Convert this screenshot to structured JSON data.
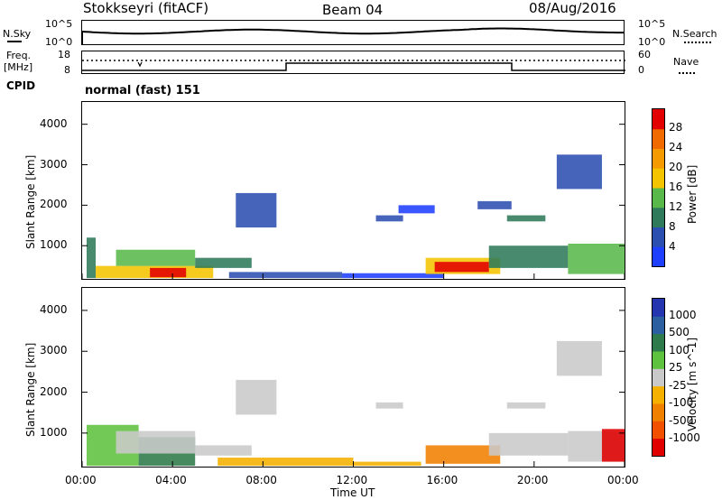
{
  "header": {
    "radar": "Stokkseyri (fitACF)",
    "beam": "Beam 04",
    "date": "08/Aug/2016"
  },
  "noise_panel": {
    "left_label": "N.Sky",
    "right_label": "N.Search",
    "left_ticks": [
      "10^5",
      "10^0"
    ],
    "right_ticks": [
      "10^5",
      "10^0"
    ]
  },
  "freq_panel": {
    "left_label_1": "Freq.",
    "left_label_2": "[MHz]",
    "right_label": "Nave",
    "left_ticks": [
      "18",
      "8"
    ],
    "right_ticks": [
      "60",
      "0"
    ]
  },
  "cpid": {
    "label": "CPID",
    "mode": "normal (fast) 151"
  },
  "colors": {
    "scale_power": [
      "#1f3fff",
      "#2b4fb0",
      "#2e7a5a",
      "#59b84a",
      "#f5c400",
      "#f59a00",
      "#f06a00",
      "#e30000"
    ],
    "scale_velocity": [
      "#2535b0",
      "#2b5fa0",
      "#2e7a4a",
      "#5ec23e",
      "#c9c9c9",
      "#f5b000",
      "#f08000",
      "#f05000",
      "#e00000"
    ],
    "ground_scatter": "#c8c8c8"
  },
  "chart_data": [
    {
      "type": "heatmap",
      "title": "",
      "xlabel": "",
      "ylabel": "Slant Range [km]",
      "x_ticks": [
        "00:00",
        "04:00",
        "08:00",
        "12:00",
        "16:00",
        "20:00",
        "00:00"
      ],
      "y_ticks": [
        "1000",
        "2000",
        "3000",
        "4000"
      ],
      "ylim": [
        180,
        4550
      ],
      "colorbar": {
        "label": "Power [dB]",
        "ticks": [
          "4",
          "8",
          "12",
          "16",
          "20",
          "24",
          "28"
        ]
      },
      "regions": [
        {
          "t0": 0.2,
          "t1": 0.6,
          "r0": 200,
          "r1": 1200,
          "level": 2
        },
        {
          "t0": 0.6,
          "t1": 5.8,
          "r0": 200,
          "r1": 500,
          "level": 4
        },
        {
          "t0": 3.0,
          "t1": 4.6,
          "r0": 220,
          "r1": 450,
          "level": 7
        },
        {
          "t0": 1.5,
          "t1": 5.0,
          "r0": 500,
          "r1": 900,
          "level": 3
        },
        {
          "t0": 5.0,
          "t1": 7.5,
          "r0": 450,
          "r1": 700,
          "level": 2
        },
        {
          "t0": 6.5,
          "t1": 11.5,
          "r0": 200,
          "r1": 350,
          "level": 1
        },
        {
          "t0": 11.5,
          "t1": 16.0,
          "r0": 200,
          "r1": 320,
          "level": 0
        },
        {
          "t0": 15.2,
          "t1": 18.5,
          "r0": 300,
          "r1": 700,
          "level": 4
        },
        {
          "t0": 15.6,
          "t1": 18.0,
          "r0": 350,
          "r1": 600,
          "level": 7
        },
        {
          "t0": 18.0,
          "t1": 21.5,
          "r0": 450,
          "r1": 1000,
          "level": 2
        },
        {
          "t0": 21.5,
          "t1": 24.0,
          "r0": 300,
          "r1": 1050,
          "level": 3
        },
        {
          "t0": 6.8,
          "t1": 8.6,
          "r0": 1450,
          "r1": 2300,
          "level": 1
        },
        {
          "t0": 13.0,
          "t1": 14.2,
          "r0": 1600,
          "r1": 1750,
          "level": 1
        },
        {
          "t0": 14.0,
          "t1": 15.6,
          "r0": 1800,
          "r1": 2000,
          "level": 0
        },
        {
          "t0": 18.8,
          "t1": 20.5,
          "r0": 1600,
          "r1": 1750,
          "level": 2
        },
        {
          "t0": 17.5,
          "t1": 19.0,
          "r0": 1900,
          "r1": 2100,
          "level": 1
        },
        {
          "t0": 21.0,
          "t1": 23.0,
          "r0": 2400,
          "r1": 3250,
          "level": 1
        }
      ]
    },
    {
      "type": "heatmap",
      "title": "",
      "xlabel": "Time UT",
      "ylabel": "Slant Range [km]",
      "x_ticks": [
        "00:00",
        "04:00",
        "08:00",
        "12:00",
        "16:00",
        "20:00",
        "00:00"
      ],
      "y_ticks": [
        "1000",
        "2000",
        "3000",
        "4000"
      ],
      "ylim": [
        180,
        4550
      ],
      "colorbar": {
        "label": "Velocity [m s^-1]",
        "ticks": [
          "1000",
          "500",
          "100",
          "25",
          "-25",
          "-100",
          "-500",
          "-1000"
        ]
      },
      "regions": [
        {
          "t0": 0.2,
          "t1": 2.5,
          "r0": 200,
          "r1": 1200,
          "level": "green"
        },
        {
          "t0": 2.5,
          "t1": 5.0,
          "r0": 200,
          "r1": 900,
          "level": "darkgreen"
        },
        {
          "t0": 1.5,
          "t1": 5.0,
          "r0": 500,
          "r1": 1050,
          "level": "gray"
        },
        {
          "t0": 5.0,
          "t1": 7.5,
          "r0": 450,
          "r1": 700,
          "level": "gray"
        },
        {
          "t0": 6.0,
          "t1": 12.0,
          "r0": 200,
          "r1": 400,
          "level": "yellow"
        },
        {
          "t0": 12.0,
          "t1": 15.0,
          "r0": 200,
          "r1": 300,
          "level": "yellow"
        },
        {
          "t0": 15.2,
          "t1": 18.5,
          "r0": 250,
          "r1": 700,
          "level": "orange"
        },
        {
          "t0": 18.0,
          "t1": 21.5,
          "r0": 450,
          "r1": 1000,
          "level": "gray"
        },
        {
          "t0": 21.5,
          "t1": 24.0,
          "r0": 300,
          "r1": 1050,
          "level": "gray"
        },
        {
          "t0": 23.0,
          "t1": 24.0,
          "r0": 300,
          "r1": 1100,
          "level": "red"
        },
        {
          "t0": 6.8,
          "t1": 8.6,
          "r0": 1450,
          "r1": 2300,
          "level": "gray"
        },
        {
          "t0": 13.0,
          "t1": 14.2,
          "r0": 1600,
          "r1": 1750,
          "level": "gray"
        },
        {
          "t0": 18.8,
          "t1": 20.5,
          "r0": 1600,
          "r1": 1750,
          "level": "gray"
        },
        {
          "t0": 21.0,
          "t1": 23.0,
          "r0": 2400,
          "r1": 3250,
          "level": "gray"
        }
      ]
    }
  ]
}
